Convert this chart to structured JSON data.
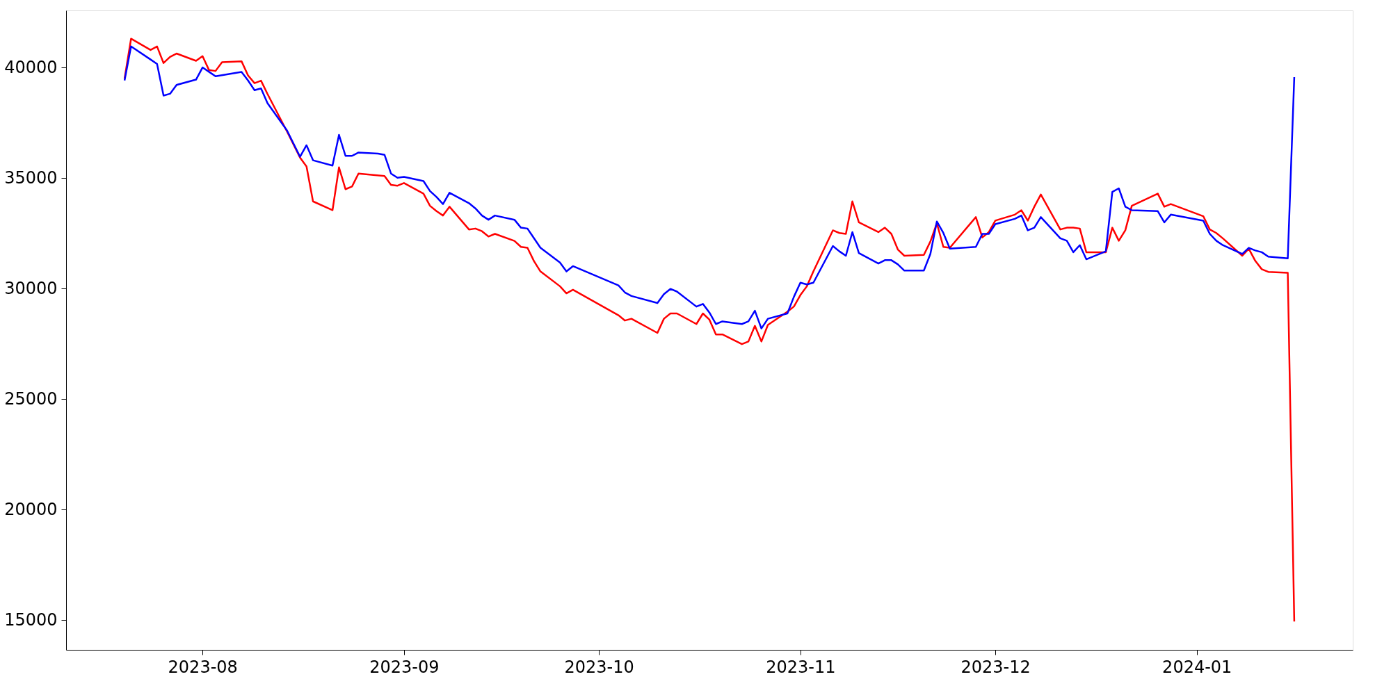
{
  "chart_data": {
    "type": "line",
    "xlim": [
      "2023-07-11",
      "2024-01-25"
    ],
    "ylim": [
      13650,
      42580
    ],
    "xticks": [
      {
        "value": "2023-08-01",
        "label": "2023-08"
      },
      {
        "value": "2023-09-01",
        "label": "2023-09"
      },
      {
        "value": "2023-10-01",
        "label": "2023-10"
      },
      {
        "value": "2023-11-01",
        "label": "2023-11"
      },
      {
        "value": "2023-12-01",
        "label": "2023-12"
      },
      {
        "value": "2024-01-01",
        "label": "2024-01"
      }
    ],
    "yticks": [
      15000,
      20000,
      25000,
      30000,
      35000,
      40000
    ],
    "grid": false,
    "marker": "none",
    "line_style": "solid",
    "series": [
      {
        "color": "#ff0000",
        "x": [
          "2023-07-20",
          "2023-07-21",
          "2023-07-24",
          "2023-07-25",
          "2023-07-26",
          "2023-07-27",
          "2023-07-28",
          "2023-07-31",
          "2023-08-01",
          "2023-08-02",
          "2023-08-03",
          "2023-08-04",
          "2023-08-07",
          "2023-08-08",
          "2023-08-09",
          "2023-08-10",
          "2023-08-11",
          "2023-08-14",
          "2023-08-16",
          "2023-08-17",
          "2023-08-18",
          "2023-08-21",
          "2023-08-22",
          "2023-08-23",
          "2023-08-24",
          "2023-08-25",
          "2023-08-29",
          "2023-08-30",
          "2023-08-31",
          "2023-09-01",
          "2023-09-04",
          "2023-09-05",
          "2023-09-06",
          "2023-09-07",
          "2023-09-08",
          "2023-09-11",
          "2023-09-12",
          "2023-09-13",
          "2023-09-14",
          "2023-09-15",
          "2023-09-18",
          "2023-09-19",
          "2023-09-20",
          "2023-09-21",
          "2023-09-22",
          "2023-09-25",
          "2023-09-26",
          "2023-09-27",
          "2023-10-04",
          "2023-10-05",
          "2023-10-06",
          "2023-10-10",
          "2023-10-11",
          "2023-10-12",
          "2023-10-13",
          "2023-10-16",
          "2023-10-17",
          "2023-10-18",
          "2023-10-19",
          "2023-10-20",
          "2023-10-23",
          "2023-10-24",
          "2023-10-25",
          "2023-10-26",
          "2023-10-27",
          "2023-10-30",
          "2023-10-31",
          "2023-11-01",
          "2023-11-02",
          "2023-11-03",
          "2023-11-06",
          "2023-11-07",
          "2023-11-08",
          "2023-11-09",
          "2023-11-10",
          "2023-11-13",
          "2023-11-14",
          "2023-11-15",
          "2023-11-16",
          "2023-11-17",
          "2023-11-20",
          "2023-11-21",
          "2023-11-22",
          "2023-11-23",
          "2023-11-24",
          "2023-11-28",
          "2023-11-29",
          "2023-11-30",
          "2023-12-01",
          "2023-12-04",
          "2023-12-05",
          "2023-12-06",
          "2023-12-07",
          "2023-12-08",
          "2023-12-11",
          "2023-12-12",
          "2023-12-13",
          "2023-12-14",
          "2023-12-15",
          "2023-12-18",
          "2023-12-19",
          "2023-12-20",
          "2023-12-21",
          "2023-12-22",
          "2023-12-26",
          "2023-12-27",
          "2023-12-28",
          "2024-01-02",
          "2024-01-03",
          "2024-01-04",
          "2024-01-05",
          "2024-01-08",
          "2024-01-09",
          "2024-01-10",
          "2024-01-11",
          "2024-01-12",
          "2024-01-15",
          "2024-01-16"
        ],
        "values": [
          39500,
          41300,
          40790,
          40950,
          40200,
          40480,
          40630,
          40300,
          40510,
          39880,
          39840,
          40240,
          40280,
          39640,
          39290,
          39400,
          38800,
          37100,
          35920,
          35520,
          33940,
          33540,
          35480,
          34490,
          34610,
          35200,
          35090,
          34690,
          34650,
          34770,
          34290,
          33740,
          33500,
          33300,
          33700,
          32670,
          32710,
          32590,
          32350,
          32470,
          32150,
          31880,
          31840,
          31240,
          30770,
          30100,
          29780,
          29940,
          28790,
          28550,
          28630,
          27990,
          28630,
          28870,
          28870,
          28390,
          28870,
          28590,
          27920,
          27920,
          27480,
          27600,
          28310,
          27600,
          28350,
          28950,
          29180,
          29700,
          30100,
          30770,
          32630,
          32510,
          32470,
          33940,
          32990,
          32550,
          32750,
          32470,
          31760,
          31480,
          31520,
          32120,
          32950,
          31880,
          31840,
          33230,
          32310,
          32550,
          33070,
          33340,
          33540,
          33070,
          33700,
          34250,
          32670,
          32750,
          32750,
          32710,
          31640,
          31640,
          32750,
          32160,
          32630,
          33740,
          34290,
          33700,
          33820,
          33270,
          32670,
          32510,
          32270,
          31480,
          31800,
          31250,
          30870,
          30750,
          30710,
          14930
        ]
      },
      {
        "color": "#0000ff",
        "x": [
          "2023-07-20",
          "2023-07-21",
          "2023-07-24",
          "2023-07-25",
          "2023-07-26",
          "2023-07-27",
          "2023-07-28",
          "2023-07-31",
          "2023-08-01",
          "2023-08-02",
          "2023-08-03",
          "2023-08-07",
          "2023-08-08",
          "2023-08-09",
          "2023-08-10",
          "2023-08-11",
          "2023-08-14",
          "2023-08-16",
          "2023-08-17",
          "2023-08-18",
          "2023-08-21",
          "2023-08-22",
          "2023-08-23",
          "2023-08-24",
          "2023-08-25",
          "2023-08-28",
          "2023-08-29",
          "2023-08-30",
          "2023-08-31",
          "2023-09-01",
          "2023-09-04",
          "2023-09-05",
          "2023-09-06",
          "2023-09-07",
          "2023-09-08",
          "2023-09-11",
          "2023-09-12",
          "2023-09-13",
          "2023-09-14",
          "2023-09-15",
          "2023-09-18",
          "2023-09-19",
          "2023-09-20",
          "2023-09-22",
          "2023-09-25",
          "2023-09-26",
          "2023-09-27",
          "2023-10-04",
          "2023-10-05",
          "2023-10-06",
          "2023-10-10",
          "2023-10-11",
          "2023-10-12",
          "2023-10-13",
          "2023-10-16",
          "2023-10-17",
          "2023-10-18",
          "2023-10-19",
          "2023-10-20",
          "2023-10-23",
          "2023-10-24",
          "2023-10-25",
          "2023-10-26",
          "2023-10-27",
          "2023-10-30",
          "2023-10-31",
          "2023-11-01",
          "2023-11-02",
          "2023-11-03",
          "2023-11-06",
          "2023-11-07",
          "2023-11-08",
          "2023-11-09",
          "2023-11-10",
          "2023-11-13",
          "2023-11-14",
          "2023-11-15",
          "2023-11-16",
          "2023-11-17",
          "2023-11-20",
          "2023-11-21",
          "2023-11-22",
          "2023-11-23",
          "2023-11-24",
          "2023-11-28",
          "2023-11-29",
          "2023-11-30",
          "2023-12-01",
          "2023-12-04",
          "2023-12-05",
          "2023-12-06",
          "2023-12-07",
          "2023-12-08",
          "2023-12-11",
          "2023-12-12",
          "2023-12-13",
          "2023-12-14",
          "2023-12-15",
          "2023-12-18",
          "2023-12-19",
          "2023-12-20",
          "2023-12-21",
          "2023-12-22",
          "2023-12-26",
          "2023-12-27",
          "2023-12-28",
          "2024-01-02",
          "2024-01-03",
          "2024-01-04",
          "2024-01-05",
          "2024-01-08",
          "2024-01-09",
          "2024-01-10",
          "2024-01-11",
          "2024-01-12",
          "2024-01-15",
          "2024-01-16"
        ],
        "values": [
          39410,
          40950,
          40360,
          40160,
          38730,
          38810,
          39210,
          39450,
          40000,
          39800,
          39600,
          39800,
          39410,
          38970,
          39050,
          38380,
          37150,
          35960,
          36480,
          35800,
          35560,
          36950,
          36000,
          36000,
          36150,
          36100,
          36050,
          35200,
          35010,
          35050,
          34860,
          34410,
          34140,
          33820,
          34330,
          33860,
          33620,
          33300,
          33110,
          33300,
          33110,
          32750,
          32710,
          31840,
          31170,
          30770,
          31010,
          30140,
          29820,
          29660,
          29340,
          29740,
          29980,
          29860,
          29180,
          29300,
          28910,
          28390,
          28510,
          28390,
          28510,
          28990,
          28190,
          28630,
          28870,
          29620,
          30260,
          30180,
          30260,
          31920,
          31680,
          31480,
          32550,
          31600,
          31130,
          31280,
          31280,
          31090,
          30810,
          30810,
          31560,
          33030,
          32510,
          31800,
          31880,
          32470,
          32470,
          32910,
          33150,
          33300,
          32630,
          32750,
          33230,
          32270,
          32160,
          31640,
          31960,
          31320,
          31680,
          34370,
          34530,
          33700,
          33540,
          33500,
          32990,
          33340,
          33070,
          32470,
          32160,
          31960,
          31560,
          31840,
          31720,
          31640,
          31440,
          31360,
          39560
        ]
      }
    ]
  }
}
